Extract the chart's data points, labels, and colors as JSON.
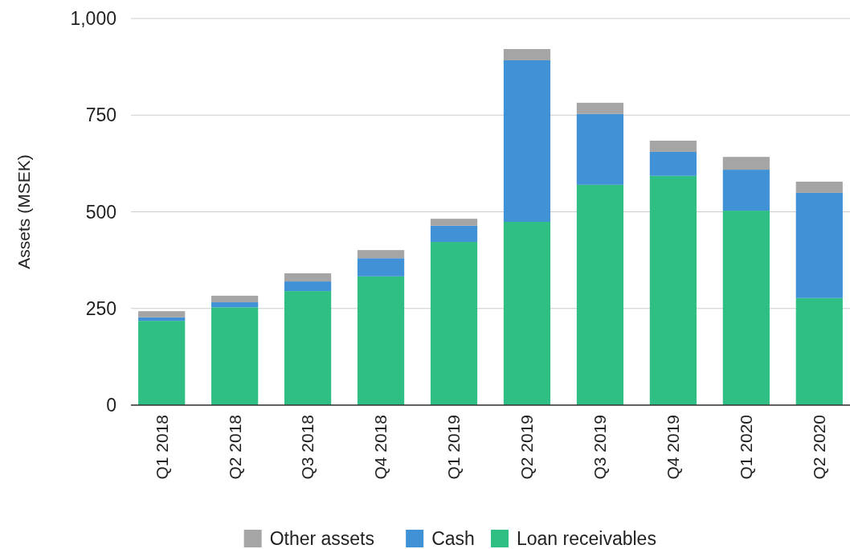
{
  "chart_data": {
    "type": "bar",
    "stacked": true,
    "ylabel": "Assets (MSEK)",
    "categories": [
      "Q1 2018",
      "Q2 2018",
      "Q3 2018",
      "Q4 2018",
      "Q1 2019",
      "Q2 2019",
      "Q3 2019",
      "Q4 2019",
      "Q1 2020",
      "Q2 2020"
    ],
    "series": [
      {
        "name": "Loan receivables",
        "color": "#2fbf85",
        "values": [
          218,
          253,
          295,
          333,
          422,
          474,
          570,
          593,
          503,
          277
        ]
      },
      {
        "name": "Cash",
        "color": "#4191d6",
        "values": [
          9,
          13,
          25,
          47,
          42,
          418,
          183,
          62,
          106,
          272
        ]
      },
      {
        "name": "Other assets",
        "color": "#a5a5a5",
        "values": [
          16,
          17,
          21,
          21,
          18,
          29,
          29,
          29,
          33,
          29
        ]
      }
    ],
    "ylim": [
      0,
      1000
    ],
    "yticks": [
      0,
      250,
      500,
      750,
      {
        "value": 1000,
        "label": "1,000"
      }
    ],
    "grid": "y",
    "legend": "bottom"
  }
}
